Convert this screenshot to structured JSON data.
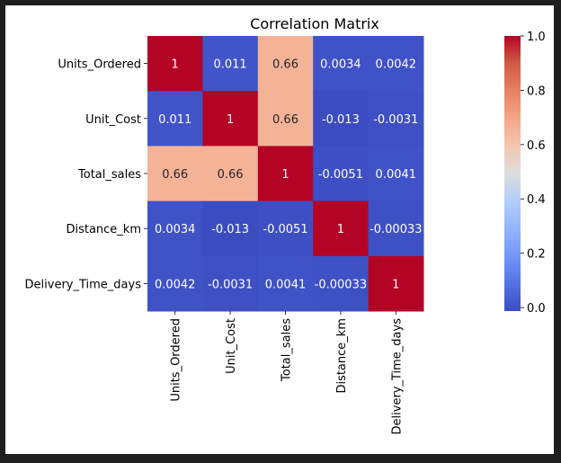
{
  "chart_data": {
    "type": "heatmap",
    "title": "Correlation Matrix",
    "labels": [
      "Units_Ordered",
      "Unit_Cost",
      "Total_sales",
      "Distance_km",
      "Delivery_Time_days"
    ],
    "values": [
      [
        1,
        0.011,
        0.66,
        0.0034,
        0.0042
      ],
      [
        0.011,
        1,
        0.66,
        -0.013,
        -0.0031
      ],
      [
        0.66,
        0.66,
        1,
        -0.0051,
        0.0041
      ],
      [
        0.0034,
        -0.013,
        -0.0051,
        1,
        -0.00033
      ],
      [
        0.0042,
        -0.0031,
        0.0041,
        -0.00033,
        1
      ]
    ],
    "cell_labels": [
      [
        "1",
        "0.011",
        "0.66",
        "0.0034",
        "0.0042"
      ],
      [
        "0.011",
        "1",
        "0.66",
        "-0.013",
        "-0.0031"
      ],
      [
        "0.66",
        "0.66",
        "1",
        "-0.0051",
        "0.0041"
      ],
      [
        "0.0034",
        "-0.013",
        "-0.0051",
        "1",
        "-0.00033"
      ],
      [
        "0.0042",
        "-0.0031",
        "0.0041",
        "-0.00033",
        "1"
      ]
    ],
    "colormap": "coolwarm",
    "colorbar": {
      "range": [
        -0.013,
        1.0
      ],
      "ticks": [
        0.0,
        0.2,
        0.4,
        0.6,
        0.8,
        1.0
      ],
      "tick_labels": [
        "0.0",
        "0.2",
        "0.4",
        "0.6",
        "0.8",
        "1.0"
      ]
    }
  }
}
